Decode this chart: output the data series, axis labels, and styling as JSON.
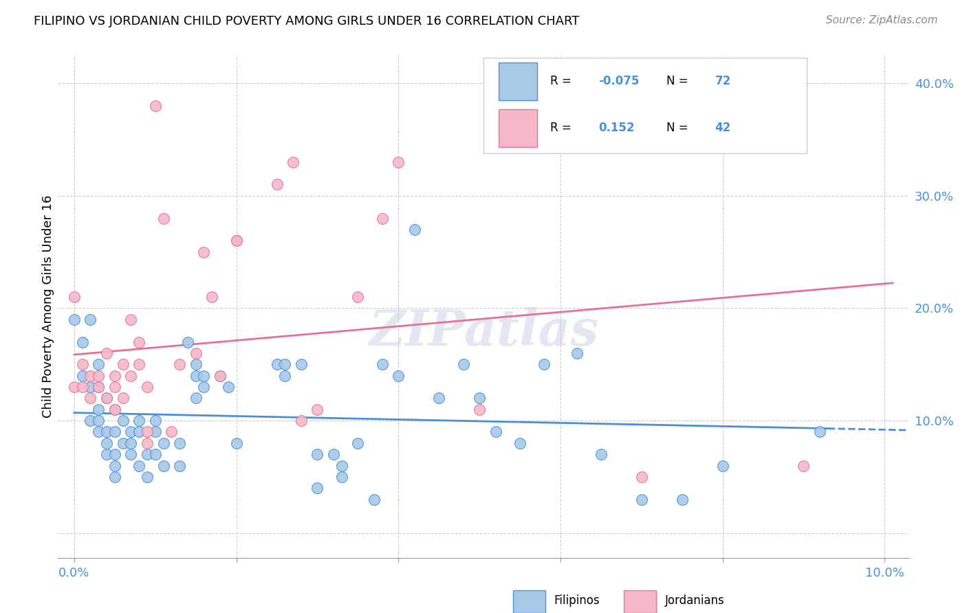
{
  "title": "FILIPINO VS JORDANIAN CHILD POVERTY AMONG GIRLS UNDER 16 CORRELATION CHART",
  "source": "Source: ZipAtlas.com",
  "ylabel": "Child Poverty Among Girls Under 16",
  "yticks": [
    0.0,
    0.1,
    0.2,
    0.3,
    0.4
  ],
  "ytick_labels": [
    "",
    "10.0%",
    "20.0%",
    "30.0%",
    "40.0%"
  ],
  "xlim": [
    -0.002,
    0.103
  ],
  "ylim": [
    -0.022,
    0.425
  ],
  "filipino_R": -0.075,
  "filipino_N": 72,
  "jordanian_R": 0.152,
  "jordanian_N": 42,
  "filipino_color": "#a8c8e8",
  "jordanian_color": "#f4b8c8",
  "filipino_line_color": "#4a90d9",
  "jordanian_line_color": "#e87090",
  "grid_color": "#cccccc",
  "watermark": "ZIPatlas",
  "legend_R_color": "#4a90d9",
  "filipino_x": [
    0.0,
    0.001,
    0.001,
    0.002,
    0.002,
    0.002,
    0.003,
    0.003,
    0.003,
    0.003,
    0.003,
    0.004,
    0.004,
    0.004,
    0.004,
    0.005,
    0.005,
    0.005,
    0.005,
    0.005,
    0.006,
    0.006,
    0.007,
    0.007,
    0.007,
    0.008,
    0.008,
    0.008,
    0.009,
    0.009,
    0.01,
    0.01,
    0.01,
    0.011,
    0.011,
    0.013,
    0.013,
    0.014,
    0.015,
    0.015,
    0.015,
    0.016,
    0.016,
    0.018,
    0.019,
    0.02,
    0.025,
    0.026,
    0.026,
    0.028,
    0.03,
    0.03,
    0.032,
    0.033,
    0.033,
    0.035,
    0.037,
    0.038,
    0.04,
    0.042,
    0.045,
    0.048,
    0.05,
    0.052,
    0.055,
    0.058,
    0.062,
    0.065,
    0.07,
    0.075,
    0.08,
    0.092
  ],
  "filipino_y": [
    0.19,
    0.14,
    0.17,
    0.19,
    0.13,
    0.1,
    0.13,
    0.15,
    0.11,
    0.1,
    0.09,
    0.12,
    0.09,
    0.08,
    0.07,
    0.11,
    0.09,
    0.07,
    0.06,
    0.05,
    0.1,
    0.08,
    0.09,
    0.08,
    0.07,
    0.1,
    0.09,
    0.06,
    0.07,
    0.05,
    0.1,
    0.09,
    0.07,
    0.08,
    0.06,
    0.08,
    0.06,
    0.17,
    0.15,
    0.14,
    0.12,
    0.14,
    0.13,
    0.14,
    0.13,
    0.08,
    0.15,
    0.15,
    0.14,
    0.15,
    0.04,
    0.07,
    0.07,
    0.06,
    0.05,
    0.08,
    0.03,
    0.15,
    0.14,
    0.27,
    0.12,
    0.15,
    0.12,
    0.09,
    0.08,
    0.15,
    0.16,
    0.07,
    0.03,
    0.03,
    0.06,
    0.09
  ],
  "jordanian_x": [
    0.0,
    0.0,
    0.001,
    0.001,
    0.002,
    0.002,
    0.003,
    0.003,
    0.004,
    0.004,
    0.005,
    0.005,
    0.005,
    0.006,
    0.006,
    0.007,
    0.007,
    0.008,
    0.008,
    0.009,
    0.009,
    0.009,
    0.01,
    0.011,
    0.012,
    0.013,
    0.015,
    0.016,
    0.017,
    0.018,
    0.02,
    0.02,
    0.025,
    0.027,
    0.028,
    0.03,
    0.035,
    0.038,
    0.04,
    0.05,
    0.07,
    0.09
  ],
  "jordanian_y": [
    0.13,
    0.21,
    0.15,
    0.13,
    0.14,
    0.12,
    0.14,
    0.13,
    0.16,
    0.12,
    0.11,
    0.14,
    0.13,
    0.15,
    0.12,
    0.19,
    0.14,
    0.15,
    0.17,
    0.13,
    0.09,
    0.08,
    0.38,
    0.28,
    0.09,
    0.15,
    0.16,
    0.25,
    0.21,
    0.14,
    0.26,
    0.26,
    0.31,
    0.33,
    0.1,
    0.11,
    0.21,
    0.28,
    0.33,
    0.11,
    0.05,
    0.06
  ]
}
